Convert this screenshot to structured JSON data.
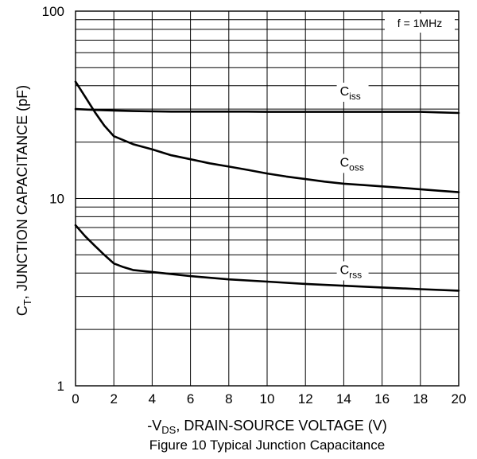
{
  "chart_data": {
    "type": "line",
    "y_scale": "log",
    "ylim": [
      1,
      100
    ],
    "xlim": [
      0,
      20
    ],
    "x_ticks": [
      0,
      2,
      4,
      6,
      8,
      10,
      12,
      14,
      16,
      18,
      20
    ],
    "y_tick_labels": [
      "1",
      "10",
      "100"
    ],
    "grid": true,
    "ylabel": {
      "main": "C",
      "sub": "T",
      "rest": ", JUNCTION CAPACITANCE (pF)"
    },
    "xlabel": {
      "prefix": "-V",
      "sub": "DS",
      "rest": ", DRAIN-SOURCE VOLTAGE (V)"
    },
    "caption": "Figure 10 Typical Junction Capacitance",
    "annotation": "f = 1MHz",
    "series": [
      {
        "name": "Ciss",
        "label_main": "C",
        "label_sub": "iss",
        "x": [
          0,
          1,
          2,
          3,
          4,
          5,
          6,
          7,
          8,
          9,
          10,
          11,
          12,
          13,
          14,
          15,
          16,
          17,
          18,
          19,
          20
        ],
        "values": [
          30,
          29.7,
          29.5,
          29.3,
          29.2,
          29.1,
          29.1,
          29.1,
          29.1,
          29.1,
          29,
          29,
          29,
          29,
          29,
          29,
          29,
          29,
          29,
          28.8,
          28.6
        ]
      },
      {
        "name": "Coss",
        "label_main": "C",
        "label_sub": "oss",
        "x": [
          0,
          0.5,
          1,
          1.5,
          2,
          3,
          4,
          5,
          6,
          7,
          8,
          9,
          10,
          11,
          12,
          13,
          14,
          15,
          16,
          17,
          18,
          19,
          20
        ],
        "values": [
          42,
          35,
          29,
          24.5,
          21.5,
          19.5,
          18.3,
          17,
          16.2,
          15.4,
          14.8,
          14.2,
          13.6,
          13.1,
          12.7,
          12.3,
          12,
          11.8,
          11.6,
          11.4,
          11.2,
          11,
          10.8
        ]
      },
      {
        "name": "Crss",
        "label_main": "C",
        "label_sub": "rss",
        "x": [
          0,
          0.5,
          1,
          1.5,
          2,
          2.5,
          3,
          4,
          6,
          8,
          10,
          12,
          14,
          16,
          18,
          20
        ],
        "values": [
          7.2,
          6.3,
          5.6,
          5,
          4.5,
          4.3,
          4.15,
          4.05,
          3.85,
          3.7,
          3.6,
          3.5,
          3.42,
          3.35,
          3.28,
          3.22
        ]
      }
    ]
  }
}
